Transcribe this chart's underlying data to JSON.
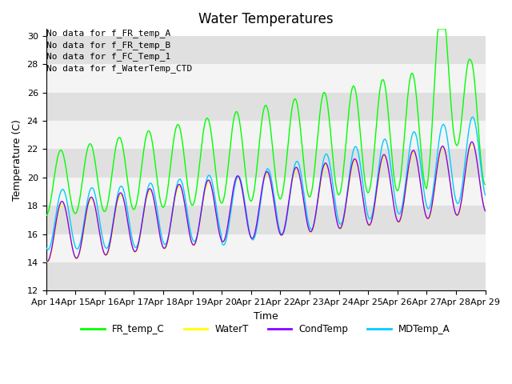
{
  "title": "Water Temperatures",
  "xlabel": "Time",
  "ylabel": "Temperature (C)",
  "ylim": [
    12,
    30.5
  ],
  "xlim": [
    0,
    15
  ],
  "xtick_labels": [
    "Apr 14",
    "Apr 15",
    "Apr 16",
    "Apr 17",
    "Apr 18",
    "Apr 19",
    "Apr 20",
    "Apr 21",
    "Apr 22",
    "Apr 23",
    "Apr 24",
    "Apr 25",
    "Apr 26",
    "Apr 27",
    "Apr 28",
    "Apr 29"
  ],
  "no_data_texts": [
    "No data for f_FR_temp_A",
    "No data for f_FR_temp_B",
    "No data for f_FC_Temp_1",
    "No data for f_WaterTemp_CTD"
  ],
  "legend_labels": [
    "FR_temp_C",
    "WaterT",
    "CondTemp",
    "MDTemp_A"
  ],
  "legend_colors": [
    "#00ff00",
    "#ffff00",
    "#8800ff",
    "#00ccff"
  ],
  "bg_band_color": "#e0e0e0",
  "bg_white_color": "#f4f4f4",
  "ytick_bands": [
    12,
    14,
    16,
    18,
    20,
    22,
    24,
    26,
    28,
    30
  ],
  "title_fontsize": 12,
  "axis_label_fontsize": 9,
  "tick_fontsize": 8,
  "text_fontsize": 8
}
